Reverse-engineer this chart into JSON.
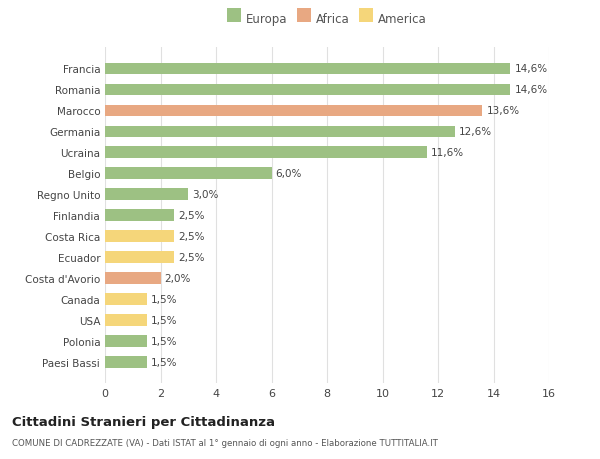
{
  "categories": [
    "Paesi Bassi",
    "Polonia",
    "USA",
    "Canada",
    "Costa d'Avorio",
    "Ecuador",
    "Costa Rica",
    "Finlandia",
    "Regno Unito",
    "Belgio",
    "Ucraina",
    "Germania",
    "Marocco",
    "Romania",
    "Francia"
  ],
  "values": [
    1.5,
    1.5,
    1.5,
    1.5,
    2.0,
    2.5,
    2.5,
    2.5,
    3.0,
    6.0,
    11.6,
    12.6,
    13.6,
    14.6,
    14.6
  ],
  "continents": [
    "Europa",
    "Europa",
    "America",
    "America",
    "Africa",
    "America",
    "America",
    "Europa",
    "Europa",
    "Europa",
    "Europa",
    "Europa",
    "Africa",
    "Europa",
    "Europa"
  ],
  "colors": {
    "Europa": "#9dc183",
    "Africa": "#e8a882",
    "America": "#f5d67a"
  },
  "labels": [
    "1,5%",
    "1,5%",
    "1,5%",
    "1,5%",
    "2,0%",
    "2,5%",
    "2,5%",
    "2,5%",
    "3,0%",
    "6,0%",
    "11,6%",
    "12,6%",
    "13,6%",
    "14,6%",
    "14,6%"
  ],
  "xlim": [
    0,
    16
  ],
  "xticks": [
    0,
    2,
    4,
    6,
    8,
    10,
    12,
    14,
    16
  ],
  "title": "Cittadini Stranieri per Cittadinanza",
  "subtitle": "COMUNE DI CADREZZATE (VA) - Dati ISTAT al 1° gennaio di ogni anno - Elaborazione TUTTITALIA.IT",
  "legend_labels": [
    "Europa",
    "Africa",
    "America"
  ],
  "legend_colors": [
    "#9dc183",
    "#e8a882",
    "#f5d67a"
  ],
  "background_color": "#ffffff",
  "grid_color": "#e0e0e0",
  "bar_height": 0.55
}
